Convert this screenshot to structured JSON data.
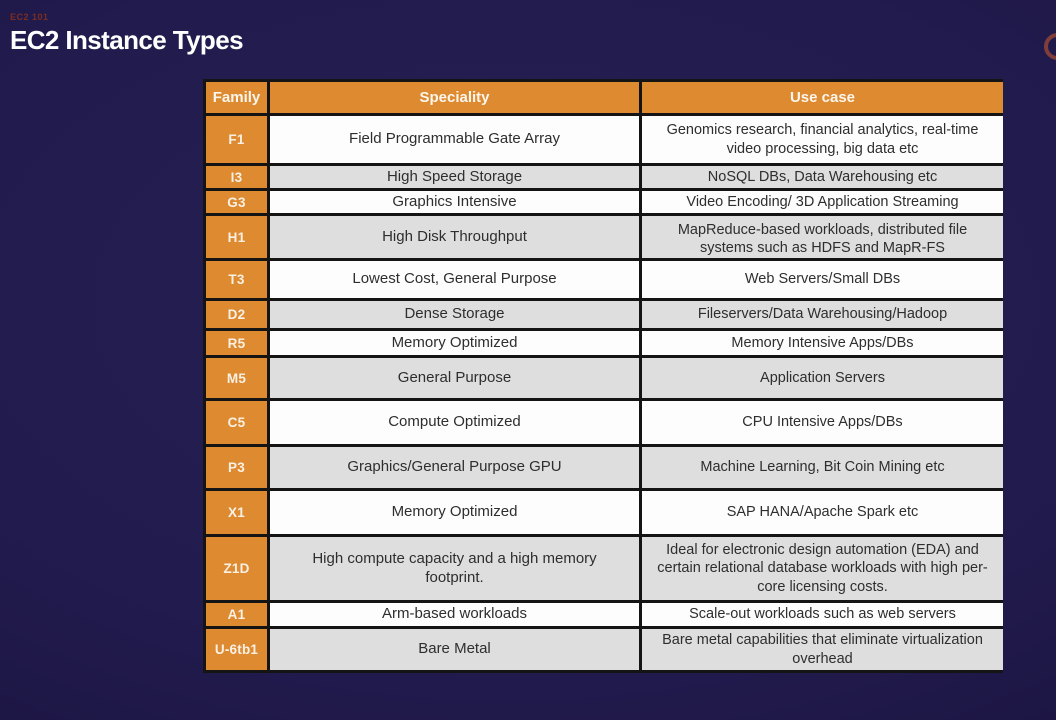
{
  "page": {
    "eyebrow": "EC2 101",
    "title": "EC2 Instance Types"
  },
  "icons": {
    "logo_ring": "partial-ring-logo"
  },
  "colors": {
    "background_navy": "#221b4e",
    "accent_orange": "#dd8a31",
    "row_grey": "#dedede",
    "row_white": "#fdfdfd",
    "border_black": "#141414",
    "eyebrow_red": "#7a2e23",
    "title_white": "#ffffff"
  },
  "table": {
    "columns": [
      "Family",
      "Speciality",
      "Use case"
    ],
    "rows": [
      {
        "family": "F1",
        "speciality": "Field Programmable Gate Array",
        "use_case": "Genomics research, financial analytics, real-time video processing, big data etc"
      },
      {
        "family": "I3",
        "speciality": "High Speed Storage",
        "use_case": "NoSQL DBs, Data Warehousing etc"
      },
      {
        "family": "G3",
        "speciality": "Graphics Intensive",
        "use_case": "Video Encoding/ 3D Application Streaming"
      },
      {
        "family": "H1",
        "speciality": "High Disk Throughput",
        "use_case": "MapReduce-based workloads, distributed file systems such as HDFS and MapR-FS"
      },
      {
        "family": "T3",
        "speciality": "Lowest Cost, General Purpose",
        "use_case": "Web Servers/Small DBs"
      },
      {
        "family": "D2",
        "speciality": "Dense Storage",
        "use_case": "Fileservers/Data Warehousing/Hadoop"
      },
      {
        "family": "R5",
        "speciality": "Memory Optimized",
        "use_case": "Memory Intensive Apps/DBs"
      },
      {
        "family": "M5",
        "speciality": "General Purpose",
        "use_case": "Application Servers"
      },
      {
        "family": "C5",
        "speciality": "Compute Optimized",
        "use_case": "CPU Intensive Apps/DBs"
      },
      {
        "family": "P3",
        "speciality": "Graphics/General Purpose GPU",
        "use_case": "Machine Learning, Bit Coin Mining etc"
      },
      {
        "family": "X1",
        "speciality": "Memory Optimized",
        "use_case": "SAP HANA/Apache Spark etc"
      },
      {
        "family": "Z1D",
        "speciality": "High compute capacity and a high memory footprint.",
        "use_case": "Ideal for electronic design automation (EDA) and certain relational database workloads with high per-core licensing costs."
      },
      {
        "family": "A1",
        "speciality": "Arm-based workloads",
        "use_case": "Scale-out workloads such as web servers"
      },
      {
        "family": "U-6tb1",
        "speciality": "Bare Metal",
        "use_case": "Bare metal capabilities that eliminate virtualization overhead"
      }
    ]
  }
}
